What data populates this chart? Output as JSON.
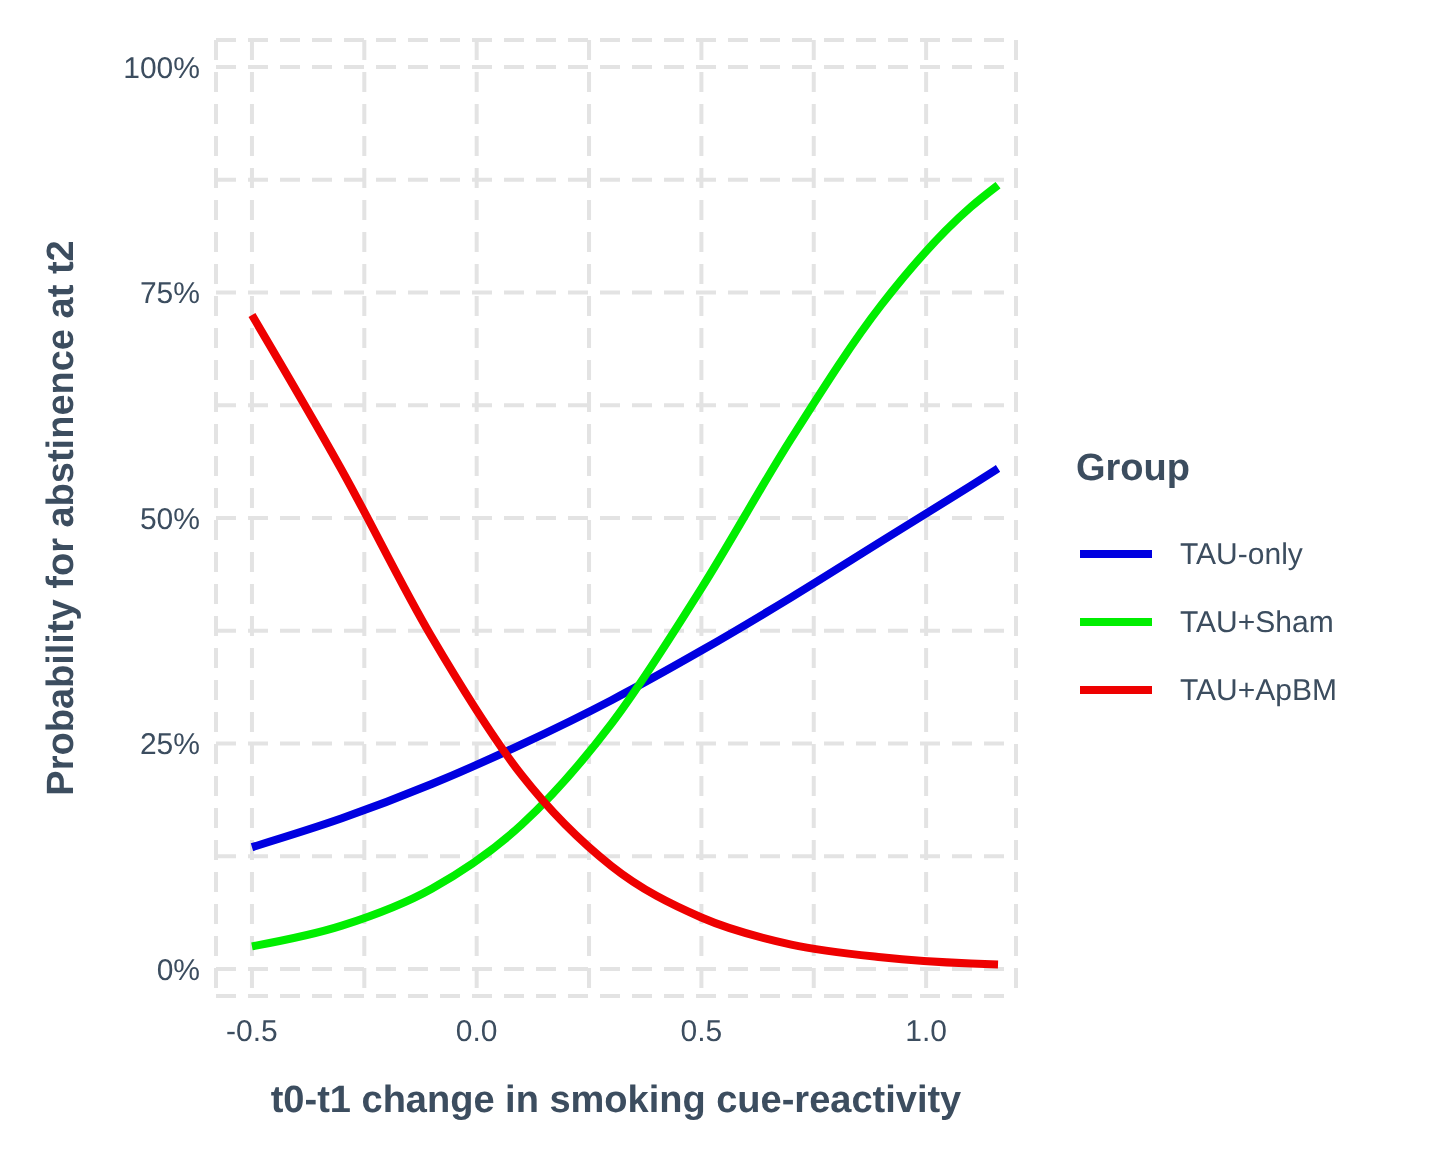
{
  "chart_data": {
    "type": "line",
    "xlabel": "t0-t1 change in smoking cue-reactivity",
    "ylabel": "Probability for abstinence at t2",
    "legend_title": "Group",
    "legend": "right",
    "grid": true,
    "marker": "none",
    "line_style": "solid",
    "xlim": [
      -0.58,
      1.2
    ],
    "xticks": [
      -0.5,
      {
        "value": -0.25,
        "label": null
      },
      {
        "value": 0,
        "label": "0.0"
      },
      {
        "value": 0.25,
        "label": null
      },
      0.5,
      {
        "value": 0.75,
        "label": null
      },
      {
        "value": 1,
        "label": "1.0"
      }
    ],
    "ylim": [
      -3,
      103
    ],
    "yticks": [
      {
        "value": 0,
        "label": "0%"
      },
      {
        "value": 12.5,
        "label": null
      },
      {
        "value": 25,
        "label": "25%"
      },
      {
        "value": 37.5,
        "label": null
      },
      {
        "value": 50,
        "label": "50%"
      },
      {
        "value": 62.5,
        "label": null
      },
      {
        "value": 75,
        "label": "75%"
      },
      {
        "value": 87.5,
        "label": null
      },
      {
        "value": 100,
        "label": "100%"
      }
    ],
    "x": [
      -0.5,
      -0.3,
      -0.1,
      0.1,
      0.3,
      0.5,
      0.7,
      0.9,
      1.1,
      1.16
    ],
    "series": [
      {
        "name": "TAU-only",
        "color": "#0000e0",
        "values": [
          13.5,
          16.7,
          20.5,
          24.9,
          29.8,
          35.3,
          41.2,
          47.4,
          53.6,
          55.5
        ]
      },
      {
        "name": "TAU+Sham",
        "color": "#00ee00",
        "values": [
          2.5,
          4.8,
          8.9,
          16.0,
          27.2,
          42.2,
          58.8,
          73.6,
          84.5,
          86.9
        ]
      },
      {
        "name": "TAU+ApBM",
        "color": "#ee0000",
        "values": [
          72.5,
          55.3,
          36.8,
          21.5,
          11.4,
          5.7,
          2.7,
          1.3,
          0.6,
          0.5
        ]
      }
    ]
  }
}
